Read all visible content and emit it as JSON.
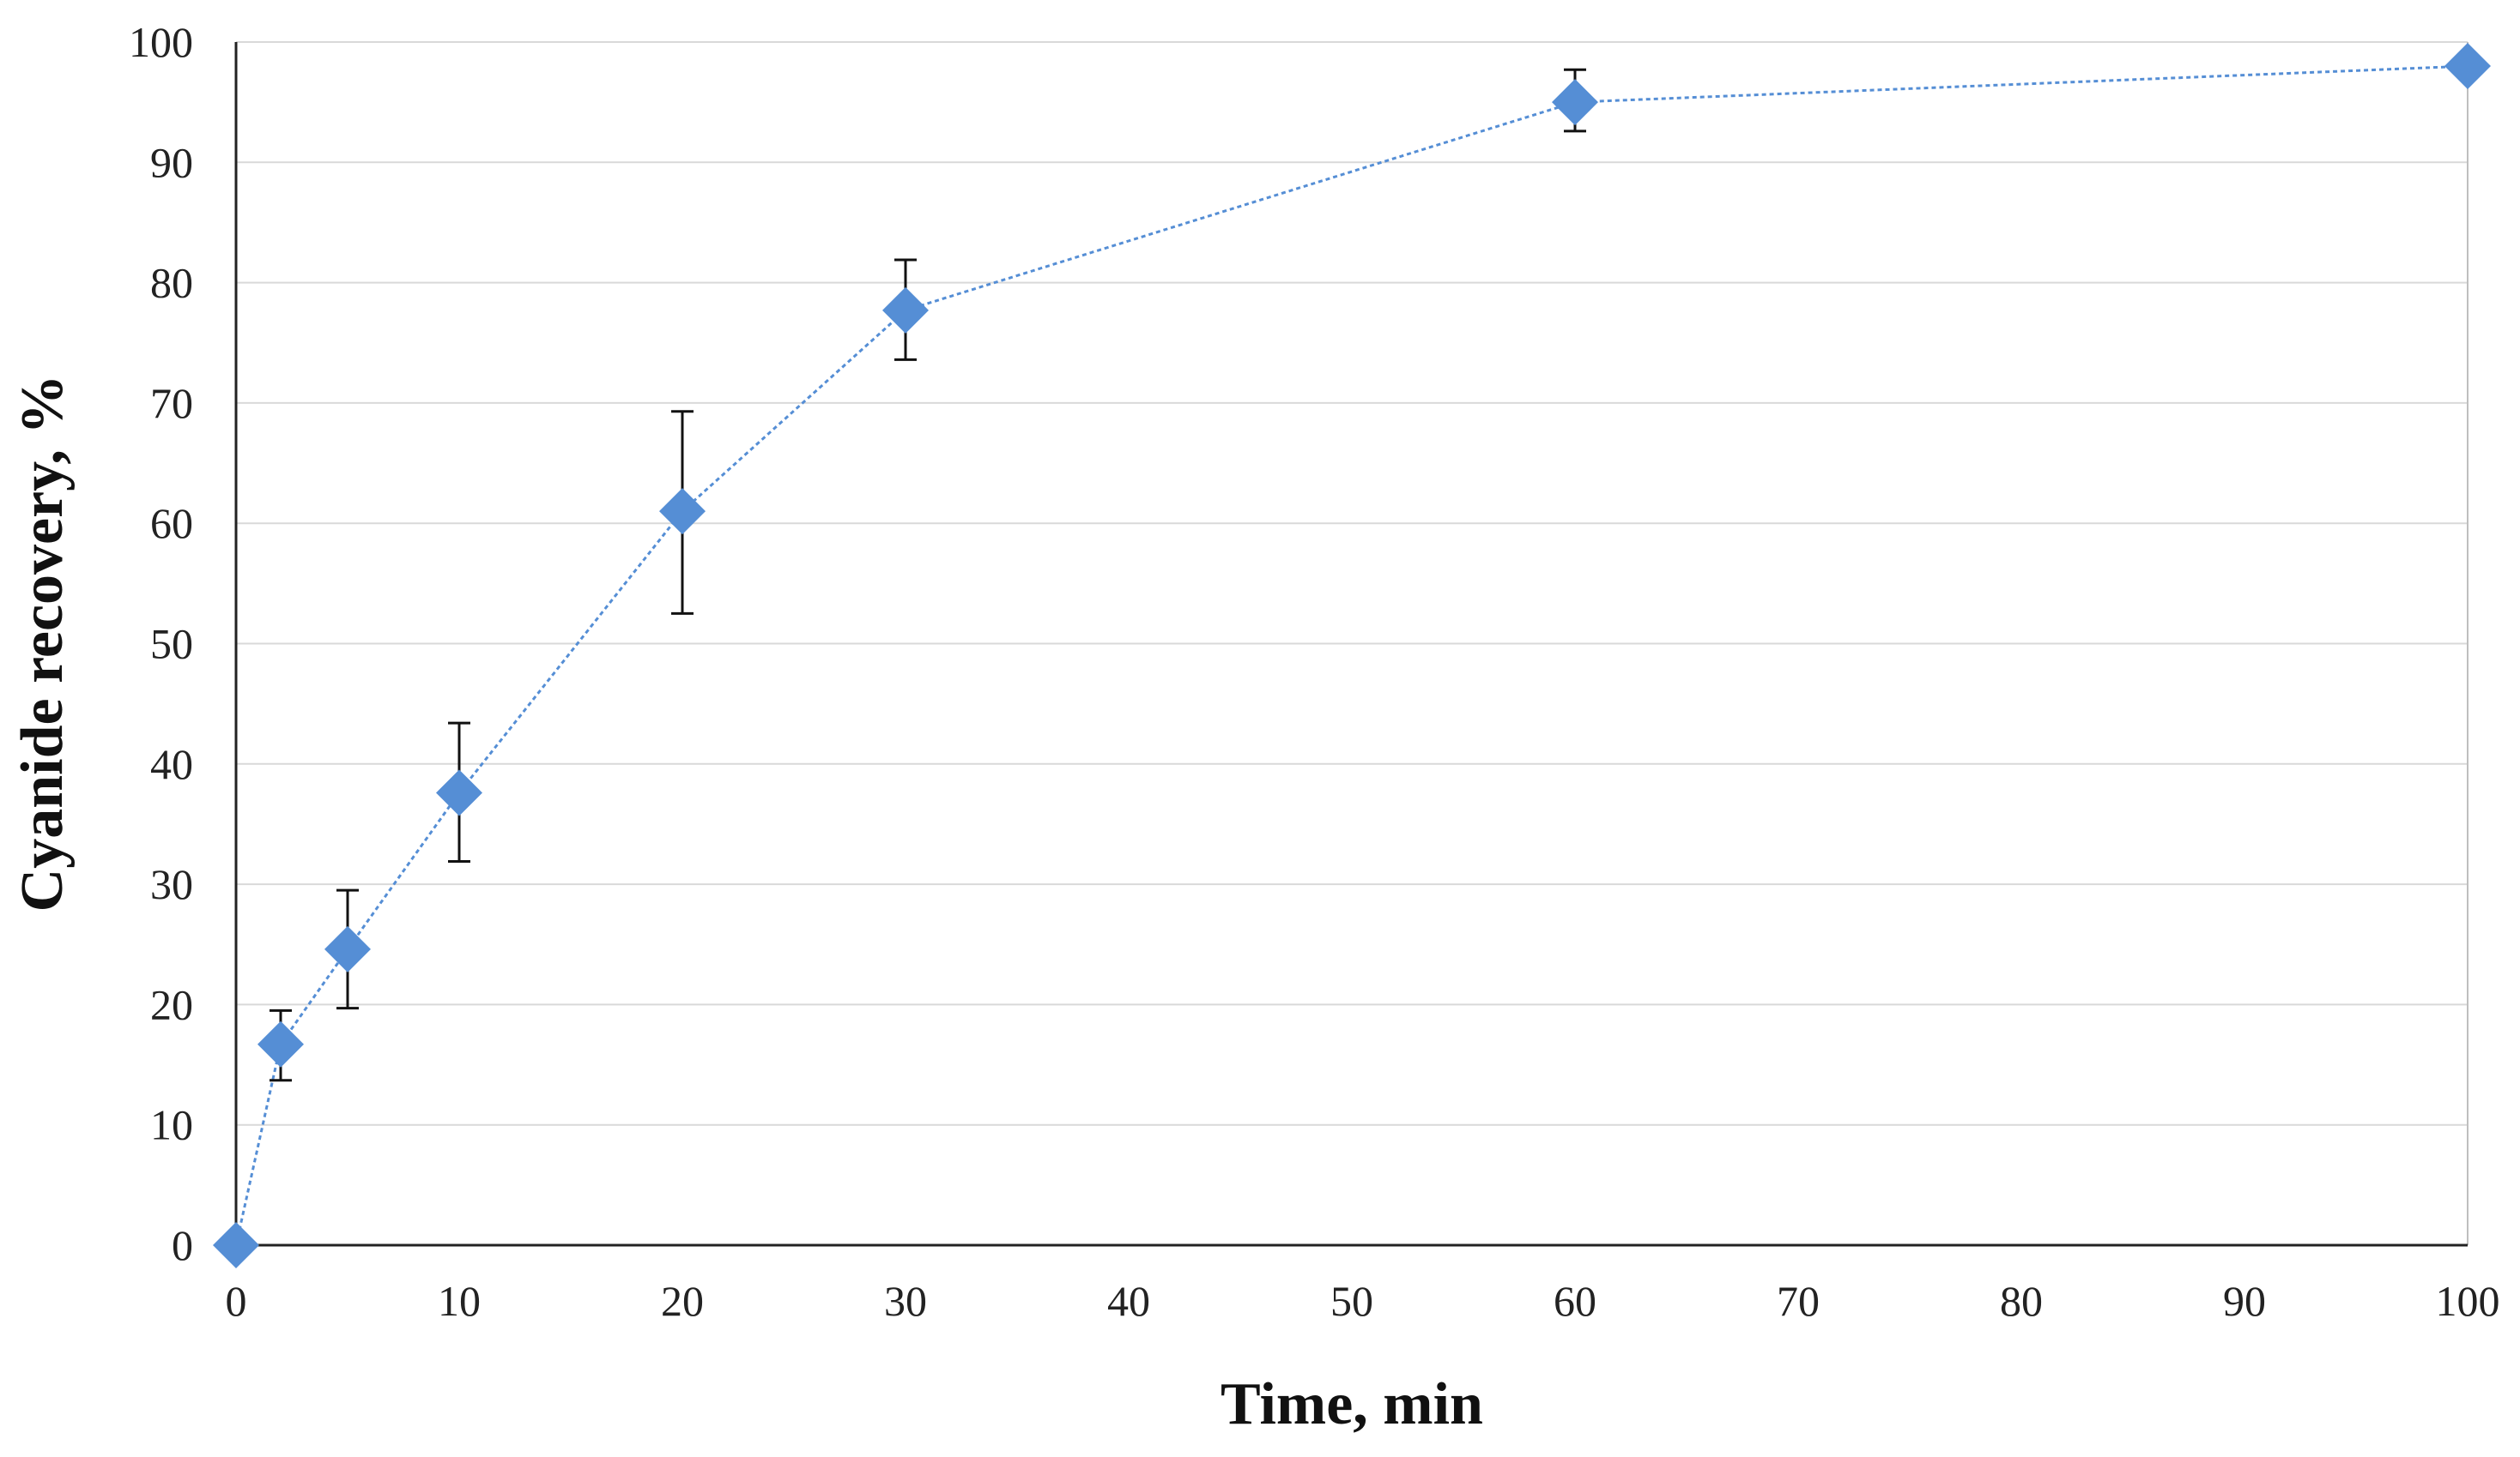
{
  "chart_data": {
    "type": "scatter",
    "title": "",
    "xlabel": "Time, min",
    "ylabel": "Cyanide recovery, %",
    "xlim": [
      0,
      100
    ],
    "ylim": [
      0,
      100
    ],
    "xticks": [
      "0",
      "10",
      "20",
      "30",
      "40",
      "50",
      "60",
      "70",
      "80",
      "90",
      "100"
    ],
    "yticks": [
      "0",
      "10",
      "20",
      "30",
      "40",
      "50",
      "60",
      "70",
      "80",
      "90",
      "100"
    ],
    "grid": "horizontal",
    "legend": "none",
    "line_style": "dotted",
    "marker": "diamond",
    "color": "#558ED5",
    "errorbar_color": "#000000",
    "series": [
      {
        "x": [
          0,
          2,
          5,
          10,
          20,
          30,
          60,
          100
        ],
        "y": [
          0,
          16.7,
          24.6,
          37.6,
          61.0,
          77.7,
          95.0,
          98.0
        ],
        "y_err_low": [
          null,
          13.7,
          19.7,
          31.9,
          52.5,
          73.6,
          92.6,
          null
        ],
        "y_err_high": [
          null,
          19.5,
          29.5,
          43.4,
          69.3,
          81.9,
          97.7,
          null
        ]
      }
    ]
  }
}
